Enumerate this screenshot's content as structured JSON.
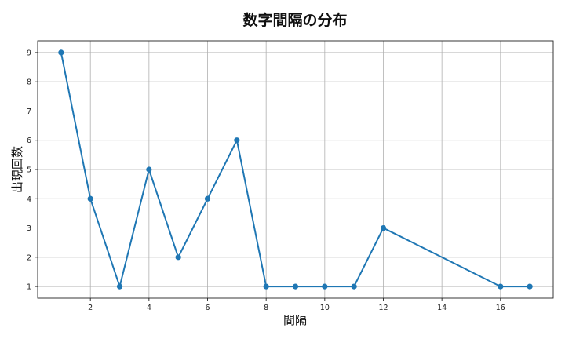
{
  "chart_data": {
    "type": "line",
    "title": "数字間隔の分布",
    "xlabel": "間隔",
    "ylabel": "出現回数",
    "x": [
      1,
      2,
      3,
      4,
      5,
      6,
      7,
      8,
      9,
      10,
      11,
      12,
      16,
      17
    ],
    "y": [
      9,
      4,
      1,
      5,
      2,
      4,
      6,
      1,
      1,
      1,
      1,
      3,
      1,
      1
    ],
    "xlim": [
      0.2,
      17.8
    ],
    "ylim": [
      0.6,
      9.4
    ],
    "xticks": [
      2,
      4,
      6,
      8,
      10,
      12,
      14,
      16
    ],
    "yticks": [
      1,
      2,
      3,
      4,
      5,
      6,
      7,
      8,
      9
    ],
    "grid": true,
    "line_color": "#1f77b4",
    "marker": "circle"
  }
}
